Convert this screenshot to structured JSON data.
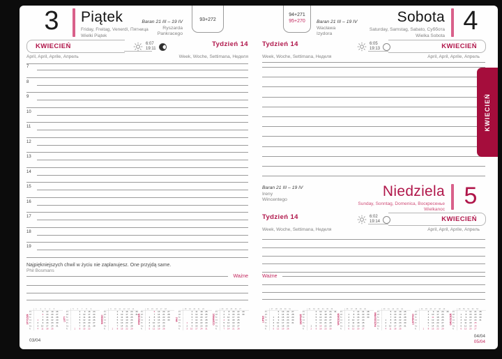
{
  "side_tab": {
    "label": "KWIECIEŃ"
  },
  "colors": {
    "accent_crimson": "#b0164a",
    "accent_pink_bar": "#d9608a",
    "tab_background": "#a50d3c",
    "small_red_text": "#cf4e78",
    "important_red": "#c2255c",
    "rule_gray": "#9a9a9a"
  },
  "left_page": {
    "day_number": "3",
    "day_name": "Piątek",
    "day_translations": "Friday, Freitag, Venerdì, Пятница",
    "holiday": "Wielki Piątek",
    "zodiac": "Baran 21 III – 19 IV",
    "name_days": [
      "Ryszarda",
      "Pankracego"
    ],
    "day_counter": "93+272",
    "month_label": "KWIECIEŃ",
    "month_translations": "April, April, Aprile, Апрель",
    "week_label": "Tydzień 14",
    "week_translations": "Week, Woche, Settimana, Неделя",
    "sunrise": "6:07",
    "sunset": "19:11",
    "hours": [
      7,
      8,
      9,
      10,
      11,
      12,
      13,
      14,
      15,
      16,
      17,
      18,
      19
    ],
    "quote": "Najpiękniejszych chwil w życiu nie zaplanujesz. One przyjdą same.",
    "quote_author": "Phil Bosmans",
    "important_label": "Ważne",
    "footer": "03/04"
  },
  "right_page": {
    "day_counter_black": "94+271",
    "day_counter_red": "95+270",
    "saturday": {
      "day_number": "4",
      "day_name": "Sobota",
      "day_translations": "Saturday, Samstag, Sabato, Суббота",
      "holiday": "Wielka Sobota",
      "zodiac": "Baran 21 III – 19 IV",
      "name_days": [
        "Wacława",
        "Izydora"
      ],
      "month_label": "KWIECIEŃ",
      "month_translations": "April, April, Aprile, Апрель",
      "week_label": "Tydzień 14",
      "week_translations": "Week, Woche, Settimana, Неделя",
      "sunrise": "6:05",
      "sunset": "19:13"
    },
    "sunday": {
      "day_number": "5",
      "day_name": "Niedziela",
      "day_translations": "Sunday, Sonntag, Domenica, Воскресенье",
      "holiday": "Wielkanoc",
      "zodiac": "Baran 21 III – 19 IV",
      "name_days": [
        "Ireny",
        "Wincentego"
      ],
      "month_label": "KWIECIEŃ",
      "month_translations": "April, April, Aprile, Апрель",
      "week_label": "Tydzień 14",
      "week_translations": "Week, Woche, Settimana, Неделя",
      "sunrise": "6:02",
      "sunset": "19:14",
      "important_label": "Ważne"
    },
    "footer_black": "04/04",
    "footer_red": "05/04"
  },
  "mini_calendars": {
    "day_labels": [
      "Pn",
      "Wt",
      "Śr",
      "Cz",
      "Pt",
      "So",
      "N"
    ],
    "months": [
      {
        "name": "STYCZEŃ",
        "weeks": [
          1,
          2,
          3,
          4,
          5
        ],
        "red_days": [
          1,
          6
        ],
        "rows": [
          [
            "",
            "5",
            "12",
            "19",
            "26"
          ],
          [
            "",
            "6",
            "13",
            "20",
            "27"
          ],
          [
            "",
            "7",
            "14",
            "21",
            "28"
          ],
          [
            "1",
            "8",
            "15",
            "22",
            "29"
          ],
          [
            "2",
            "9",
            "16",
            "23",
            "30"
          ],
          [
            "3",
            "10",
            "17",
            "24",
            "31"
          ],
          [
            "4",
            "11",
            "18",
            "25",
            ""
          ]
        ]
      },
      {
        "name": "LUTY",
        "weeks": [
          5,
          6,
          7,
          8,
          9
        ],
        "red_days": [],
        "rows": [
          [
            "",
            "2",
            "9",
            "16",
            "23"
          ],
          [
            "",
            "3",
            "10",
            "17",
            "24"
          ],
          [
            "",
            "4",
            "11",
            "18",
            "25"
          ],
          [
            "",
            "5",
            "12",
            "19",
            "26"
          ],
          [
            "",
            "6",
            "13",
            "20",
            "27"
          ],
          [
            "",
            "7",
            "14",
            "21",
            "28"
          ],
          [
            "1",
            "8",
            "15",
            "22",
            ""
          ]
        ]
      },
      {
        "name": "MARZEC",
        "weeks": [
          9,
          10,
          11,
          12,
          13,
          14
        ],
        "red_days": [],
        "rows": [
          [
            "",
            "2",
            "9",
            "16",
            "23",
            "30"
          ],
          [
            "",
            "3",
            "10",
            "17",
            "24",
            "31"
          ],
          [
            "",
            "4",
            "11",
            "18",
            "25",
            ""
          ],
          [
            "",
            "5",
            "12",
            "19",
            "26",
            ""
          ],
          [
            "",
            "6",
            "13",
            "20",
            "27",
            ""
          ],
          [
            "",
            "7",
            "14",
            "21",
            "28",
            ""
          ],
          [
            "1",
            "8",
            "15",
            "22",
            "29",
            ""
          ]
        ]
      },
      {
        "name": "KWIECIEŃ",
        "weeks": [
          14,
          15,
          16,
          17,
          18
        ],
        "red_days": [
          5,
          6
        ],
        "rows": [
          [
            "",
            "6",
            "13",
            "20",
            "27"
          ],
          [
            "",
            "7",
            "14",
            "21",
            "28"
          ],
          [
            "1",
            "8",
            "15",
            "22",
            "29"
          ],
          [
            "2",
            "9",
            "16",
            "23",
            "30"
          ],
          [
            "3",
            "10",
            "17",
            "24",
            ""
          ],
          [
            "4",
            "11",
            "18",
            "25",
            ""
          ],
          [
            "5",
            "12",
            "19",
            "26",
            ""
          ]
        ]
      },
      {
        "name": "MAJ",
        "weeks": [
          18,
          19,
          20,
          21,
          22
        ],
        "red_days": [
          1,
          3
        ],
        "rows": [
          [
            "",
            "4",
            "11",
            "18",
            "25"
          ],
          [
            "",
            "5",
            "12",
            "19",
            "26"
          ],
          [
            "",
            "6",
            "13",
            "20",
            "27"
          ],
          [
            "",
            "7",
            "14",
            "21",
            "28"
          ],
          [
            "1",
            "8",
            "15",
            "22",
            "29"
          ],
          [
            "2",
            "9",
            "16",
            "23",
            "30"
          ],
          [
            "3",
            "10",
            "17",
            "24",
            "31"
          ]
        ]
      },
      {
        "name": "CZERWIEC",
        "weeks": [
          23,
          24,
          25,
          26,
          27
        ],
        "red_days": [
          4
        ],
        "rows": [
          [
            "1",
            "8",
            "15",
            "22",
            "29"
          ],
          [
            "2",
            "9",
            "16",
            "23",
            "30"
          ],
          [
            "3",
            "10",
            "17",
            "24",
            ""
          ],
          [
            "4",
            "11",
            "18",
            "25",
            ""
          ],
          [
            "5",
            "12",
            "19",
            "26",
            ""
          ],
          [
            "6",
            "13",
            "20",
            "27",
            ""
          ],
          [
            "7",
            "14",
            "21",
            "28",
            ""
          ]
        ]
      },
      {
        "name": "LIPIEC",
        "weeks": [
          27,
          28,
          29,
          30,
          31
        ],
        "red_days": [],
        "rows": [
          [
            "",
            "6",
            "13",
            "20",
            "27"
          ],
          [
            "",
            "7",
            "14",
            "21",
            "28"
          ],
          [
            "1",
            "8",
            "15",
            "22",
            "29"
          ],
          [
            "2",
            "9",
            "16",
            "23",
            "30"
          ],
          [
            "3",
            "10",
            "17",
            "24",
            "31"
          ],
          [
            "4",
            "11",
            "18",
            "25",
            ""
          ],
          [
            "5",
            "12",
            "19",
            "26",
            ""
          ]
        ]
      },
      {
        "name": "SIERPIEŃ",
        "weeks": [
          31,
          32,
          33,
          34,
          35,
          36
        ],
        "red_days": [
          15
        ],
        "rows": [
          [
            "",
            "3",
            "10",
            "17",
            "24",
            "31"
          ],
          [
            "",
            "4",
            "11",
            "18",
            "25",
            ""
          ],
          [
            "",
            "5",
            "12",
            "19",
            "26",
            ""
          ],
          [
            "",
            "6",
            "13",
            "20",
            "27",
            ""
          ],
          [
            "",
            "7",
            "14",
            "21",
            "28",
            ""
          ],
          [
            "1",
            "8",
            "15",
            "22",
            "29",
            ""
          ],
          [
            "2",
            "9",
            "16",
            "23",
            "30",
            ""
          ]
        ]
      },
      {
        "name": "WRZESIEŃ",
        "weeks": [
          36,
          37,
          38,
          39,
          40
        ],
        "red_days": [],
        "rows": [
          [
            "",
            "7",
            "14",
            "21",
            "28"
          ],
          [
            "1",
            "8",
            "15",
            "22",
            "29"
          ],
          [
            "2",
            "9",
            "16",
            "23",
            "30"
          ],
          [
            "3",
            "10",
            "17",
            "24",
            ""
          ],
          [
            "4",
            "11",
            "18",
            "25",
            ""
          ],
          [
            "5",
            "12",
            "19",
            "26",
            ""
          ],
          [
            "6",
            "13",
            "20",
            "27",
            ""
          ]
        ]
      },
      {
        "name": "PAŹDZIERNIK",
        "weeks": [
          40,
          41,
          42,
          43,
          44
        ],
        "red_days": [],
        "rows": [
          [
            "",
            "5",
            "12",
            "19",
            "26"
          ],
          [
            "",
            "6",
            "13",
            "20",
            "27"
          ],
          [
            "",
            "7",
            "14",
            "21",
            "28"
          ],
          [
            "1",
            "8",
            "15",
            "22",
            "29"
          ],
          [
            "2",
            "9",
            "16",
            "23",
            "30"
          ],
          [
            "3",
            "10",
            "17",
            "24",
            "31"
          ],
          [
            "4",
            "11",
            "18",
            "25",
            ""
          ]
        ]
      },
      {
        "name": "LISTOPAD",
        "weeks": [
          44,
          45,
          46,
          47,
          48,
          49
        ],
        "red_days": [
          1,
          11
        ],
        "rows": [
          [
            "",
            "2",
            "9",
            "16",
            "23",
            "30"
          ],
          [
            "",
            "3",
            "10",
            "17",
            "24",
            ""
          ],
          [
            "",
            "4",
            "11",
            "18",
            "25",
            ""
          ],
          [
            "",
            "5",
            "12",
            "19",
            "26",
            ""
          ],
          [
            "",
            "6",
            "13",
            "20",
            "27",
            ""
          ],
          [
            "",
            "7",
            "14",
            "21",
            "28",
            ""
          ],
          [
            "1",
            "8",
            "15",
            "22",
            "29",
            ""
          ]
        ]
      },
      {
        "name": "GRUDZIEŃ",
        "weeks": [
          49,
          50,
          51,
          52,
          53
        ],
        "red_days": [
          25,
          26
        ],
        "rows": [
          [
            "",
            "7",
            "14",
            "21",
            "28"
          ],
          [
            "1",
            "8",
            "15",
            "22",
            "29"
          ],
          [
            "2",
            "9",
            "16",
            "23",
            "30"
          ],
          [
            "3",
            "10",
            "17",
            "24",
            "31"
          ],
          [
            "4",
            "11",
            "18",
            "25",
            ""
          ],
          [
            "5",
            "12",
            "19",
            "26",
            ""
          ],
          [
            "6",
            "13",
            "20",
            "27",
            ""
          ]
        ]
      }
    ]
  }
}
